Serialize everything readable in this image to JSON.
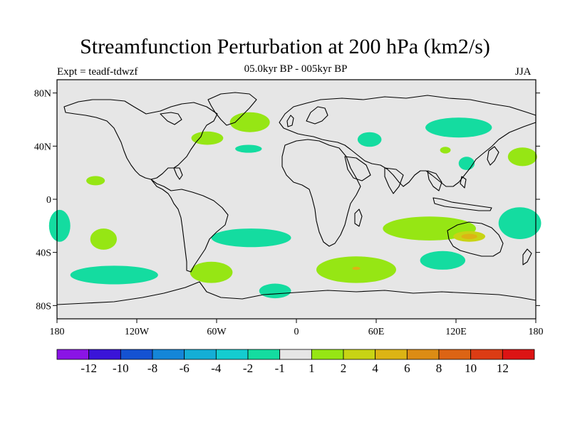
{
  "title": "Streamfunction Perturbation at 200 hPa (km2/s)",
  "subtitle": "05.0kyr BP - 005kyr BP",
  "experiment": "Expt = teadf-tdwzf",
  "season": "JJA",
  "lat_ticks": [
    {
      "label": "80N",
      "lat": 80
    },
    {
      "label": "40N",
      "lat": 40
    },
    {
      "label": "0",
      "lat": 0
    },
    {
      "label": "40S",
      "lat": -40
    },
    {
      "label": "80S",
      "lat": -80
    }
  ],
  "lon_ticks": [
    {
      "label": "180",
      "lon": -180
    },
    {
      "label": "120W",
      "lon": -120
    },
    {
      "label": "60W",
      "lon": -60
    },
    {
      "label": "0",
      "lon": 0
    },
    {
      "label": "60E",
      "lon": 60
    },
    {
      "label": "120E",
      "lon": 120
    },
    {
      "label": "180",
      "lon": 180
    }
  ],
  "colorbar": {
    "colors": [
      "#8a14e6",
      "#3a14d8",
      "#1452d2",
      "#1486d8",
      "#14aed6",
      "#14ccd0",
      "#14dca0",
      "#e6e6e6",
      "#96e614",
      "#c8d414",
      "#dcb414",
      "#dc8c14",
      "#dc6414",
      "#dc3c14",
      "#dc1414"
    ],
    "labels": [
      "-12",
      "-10",
      "-8",
      "-6",
      "-4",
      "-2",
      "-1",
      "1",
      "2",
      "4",
      "6",
      "8",
      "10",
      "12"
    ]
  },
  "colors": {
    "ocean_land_bg": "#e6e6e6",
    "neg_light": "#14dca0",
    "neg_mid": "#14ccd0",
    "pos_light": "#96e614",
    "pos_mid": "#c8d414",
    "pos_high": "#dcb414"
  },
  "anomalies": [
    {
      "name": "anomaly-north-atlantic-positive",
      "lon": -35,
      "lat": 58,
      "rlon": 15,
      "rlat": 7.5,
      "color": "#96e614"
    },
    {
      "name": "anomaly-northeast-us-positive",
      "lon": -67,
      "lat": 46,
      "rlon": 12,
      "rlat": 5,
      "color": "#96e614"
    },
    {
      "name": "anomaly-mid-atlantic-negative",
      "lon": -36,
      "lat": 38,
      "rlon": 10,
      "rlat": 3,
      "color": "#14dca0"
    },
    {
      "name": "anomaly-central-asia-negative",
      "lon": 55,
      "lat": 45,
      "rlon": 9,
      "rlat": 5.5,
      "color": "#14dca0"
    },
    {
      "name": "anomaly-siberia-negative",
      "lon": 122,
      "lat": 54,
      "rlon": 25,
      "rlat": 7.5,
      "color": "#14dca0"
    },
    {
      "name": "anomaly-east-asia-positive",
      "lon": 112,
      "lat": 37,
      "rlon": 4,
      "rlat": 2.5,
      "color": "#96e614"
    },
    {
      "name": "anomaly-japan-negative",
      "lon": 128,
      "lat": 27,
      "rlon": 6,
      "rlat": 5,
      "color": "#14dca0"
    },
    {
      "name": "anomaly-north-pacific-positive",
      "lon": 170,
      "lat": 32,
      "rlon": 11,
      "rlat": 7,
      "color": "#96e614"
    },
    {
      "name": "anomaly-central-pacific-positive",
      "lon": -151,
      "lat": 14,
      "rlon": 7,
      "rlat": 3.5,
      "color": "#96e614"
    },
    {
      "name": "anomaly-east-pacific-positive",
      "lon": -145,
      "lat": -30,
      "rlon": 10,
      "rlat": 8,
      "color": "#96e614"
    },
    {
      "name": "anomaly-south-pacific-negative",
      "lon": -137,
      "lat": -57,
      "rlon": 33,
      "rlat": 7,
      "color": "#14dca0"
    },
    {
      "name": "anomaly-west-edge-negative",
      "lon": -178,
      "lat": -20,
      "rlon": 8,
      "rlat": 12,
      "color": "#14dca0"
    },
    {
      "name": "anomaly-south-atlantic-negative",
      "lon": -34,
      "lat": -29,
      "rlon": 30,
      "rlat": 7,
      "color": "#14dca0"
    },
    {
      "name": "anomaly-patagonia-positive",
      "lon": -64,
      "lat": -55,
      "rlon": 16,
      "rlat": 8,
      "color": "#96e614"
    },
    {
      "name": "anomaly-southern-ocean-negative",
      "lon": -16,
      "lat": -69,
      "rlon": 12,
      "rlat": 5.5,
      "color": "#14dca0"
    },
    {
      "name": "anomaly-indian-ocean-positive",
      "lon": 45,
      "lat": -53,
      "rlon": 30,
      "rlat": 10,
      "color": "#96e614"
    },
    {
      "name": "anomaly-indian-ocean-core",
      "lon": 45,
      "lat": -52,
      "rlon": 3,
      "rlat": 1.2,
      "color": "#dcb414"
    },
    {
      "name": "anomaly-australia-positive",
      "lon": 100,
      "lat": -22,
      "rlon": 35,
      "rlat": 9,
      "color": "#96e614"
    },
    {
      "name": "anomaly-australia-mid",
      "lon": 130,
      "lat": -28,
      "rlon": 12,
      "rlat": 4,
      "color": "#c8d414"
    },
    {
      "name": "anomaly-australia-core",
      "lon": 130,
      "lat": -28,
      "rlon": 6,
      "rlat": 2,
      "color": "#dcb414"
    },
    {
      "name": "anomaly-south-indian-negative",
      "lon": 110,
      "lat": -46,
      "rlon": 17,
      "rlat": 7,
      "color": "#14dca0"
    },
    {
      "name": "anomaly-tasman-negative",
      "lon": 168,
      "lat": -18,
      "rlon": 16,
      "rlat": 12,
      "color": "#14dca0"
    }
  ]
}
